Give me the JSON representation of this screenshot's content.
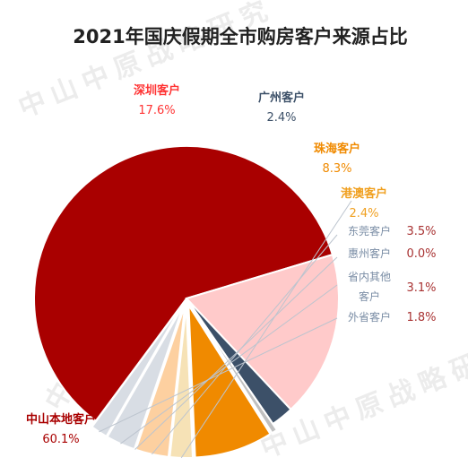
{
  "watermark": "中山中原战略研究",
  "chart_data": {
    "type": "pie",
    "title": "2021年国庆假期全市购房客户来源占比",
    "slices": [
      {
        "name": "中山本地客户",
        "value": 60.1,
        "label_value": "60.1%",
        "color": "#a90000",
        "label_color": "#a90000"
      },
      {
        "name": "深圳客户",
        "value": 17.6,
        "label_value": "17.6%",
        "color": "#ffcaca",
        "label_color": "#ff3333"
      },
      {
        "name": "广州客户",
        "value": 2.4,
        "label_value": "2.4%",
        "color": "#3c5068",
        "label_color": "#3c5068"
      },
      {
        "name": "",
        "value": 0.6,
        "label_value": "",
        "color": "#c0c0c0",
        "label_color": "#c0c0c0"
      },
      {
        "name": "珠海客户",
        "value": 8.3,
        "label_value": "8.3%",
        "color": "#f08a00",
        "label_color": "#f08a00"
      },
      {
        "name": "港澳客户",
        "value": 2.4,
        "label_value": "2.4%",
        "color": "#f6e2b6",
        "label_color": "#f0a020"
      },
      {
        "name": "东莞客户",
        "value": 3.5,
        "label_value": "3.5%",
        "color": "#fdd0a0",
        "label_color": "#a83232"
      },
      {
        "name": "惠州客户",
        "value": 0.0,
        "label_value": "0.0%",
        "color": "#d8dde4",
        "label_color": "#a83232"
      },
      {
        "name": "省内其他客户",
        "value": 3.1,
        "label_value": "3.1%",
        "color": "#d8dde4",
        "label_color": "#a83232"
      },
      {
        "name": "外省客户",
        "value": 1.8,
        "label_value": "1.8%",
        "color": "#d8dde4",
        "label_color": "#a83232"
      }
    ]
  }
}
